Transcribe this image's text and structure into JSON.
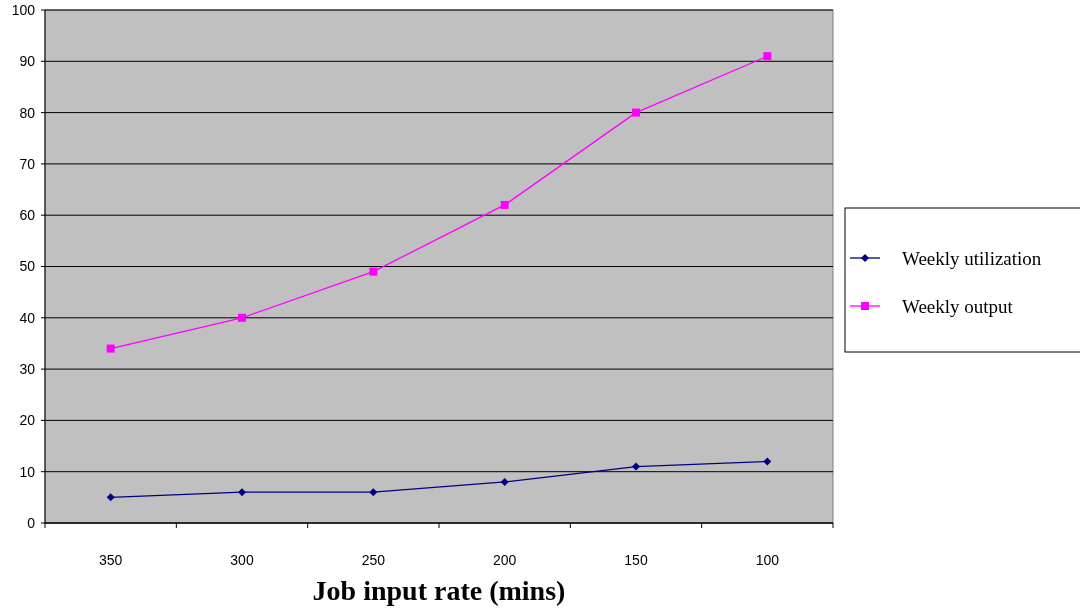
{
  "chart_data": {
    "type": "line",
    "xlabel": "Job input rate (mins)",
    "categories": [
      "350",
      "300",
      "250",
      "200",
      "150",
      "100"
    ],
    "series": [
      {
        "name": "Weekly utilization",
        "color": "#000080",
        "marker": "diamond",
        "values": [
          5,
          6,
          6,
          8,
          11,
          12
        ]
      },
      {
        "name": "Weekly output",
        "color": "#ff00ff",
        "marker": "square",
        "values": [
          34,
          40,
          49,
          62,
          80,
          91
        ]
      }
    ],
    "ylim": [
      0,
      100
    ],
    "yticks": [
      0,
      10,
      20,
      30,
      40,
      50,
      60,
      70,
      80,
      90,
      100
    ],
    "grid": "y",
    "legend": "right"
  }
}
